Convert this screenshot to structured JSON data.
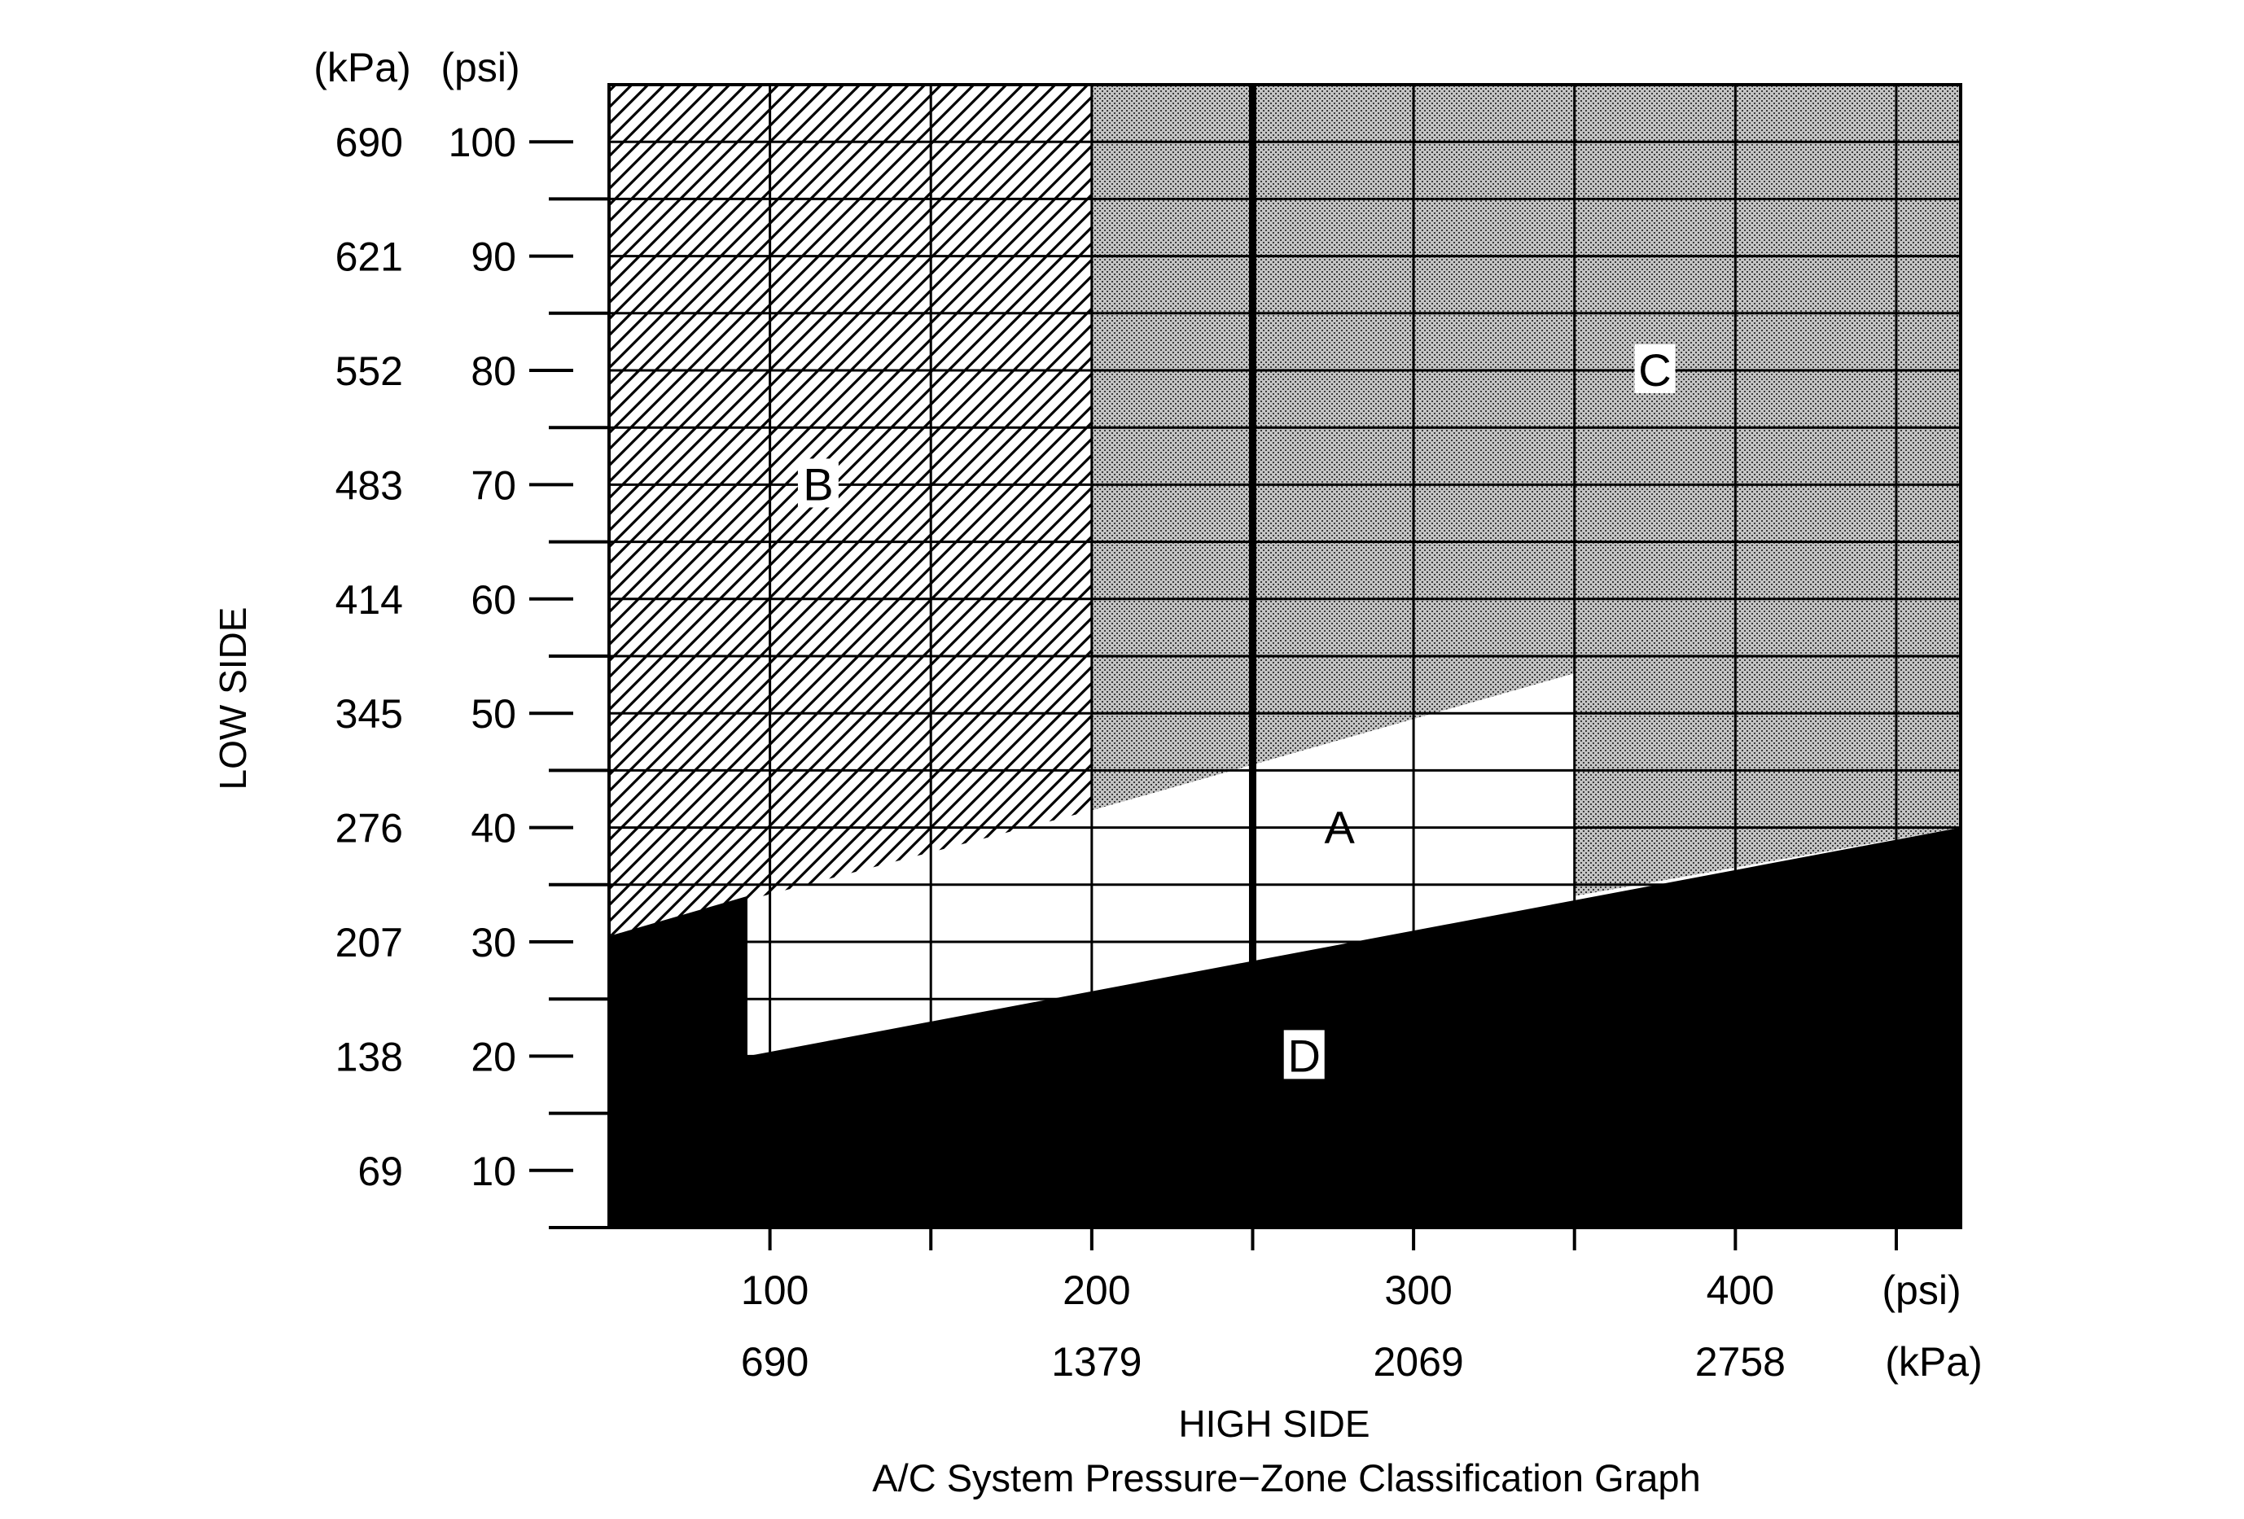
{
  "chart_data": {
    "type": "area",
    "title": "A/C System Pressure−Zone Classification Graph",
    "xlabel": "HIGH SIDE",
    "ylabel": "LOW SIDE",
    "x_units": {
      "primary": "(psi)",
      "secondary": "(kPa)"
    },
    "y_units": {
      "primary": "(psi)",
      "secondary": "(kPa)"
    },
    "xlim": [
      50,
      470
    ],
    "ylim": [
      5,
      105
    ],
    "x_ticks": [
      {
        "psi": 100,
        "psi_label": "100",
        "kpa_label": "690"
      },
      {
        "psi": 200,
        "psi_label": "200",
        "kpa_label": "1379"
      },
      {
        "psi": 300,
        "psi_label": "300",
        "kpa_label": "2069"
      },
      {
        "psi": 400,
        "psi_label": "400",
        "kpa_label": "2758"
      }
    ],
    "x_minor_ticks": [
      150,
      250,
      350,
      450
    ],
    "y_ticks": [
      {
        "psi": 100,
        "psi_label": "100",
        "kpa_label": "690"
      },
      {
        "psi": 90,
        "psi_label": "90",
        "kpa_label": "621"
      },
      {
        "psi": 80,
        "psi_label": "80",
        "kpa_label": "552"
      },
      {
        "psi": 70,
        "psi_label": "70",
        "kpa_label": "483"
      },
      {
        "psi": 60,
        "psi_label": "60",
        "kpa_label": "414"
      },
      {
        "psi": 50,
        "psi_label": "50",
        "kpa_label": "345"
      },
      {
        "psi": 40,
        "psi_label": "40",
        "kpa_label": "276"
      },
      {
        "psi": 30,
        "psi_label": "30",
        "kpa_label": "207"
      },
      {
        "psi": 20,
        "psi_label": "20",
        "kpa_label": "138"
      },
      {
        "psi": 10,
        "psi_label": "10",
        "kpa_label": "69"
      }
    ],
    "y_minor_ticks": [
      95,
      85,
      75,
      65,
      55,
      45,
      35,
      25,
      15
    ],
    "grid": true,
    "emphasized_gridline_x": 250,
    "zones": [
      {
        "label": "A",
        "pattern": "white",
        "polygon": [
          [
            93,
            20
          ],
          [
            93,
            34
          ],
          [
            250,
            45.5
          ],
          [
            350,
            53.5
          ],
          [
            350,
            34
          ],
          [
            93,
            20
          ]
        ],
        "label_at": [
          277,
          40
        ]
      },
      {
        "label": "B",
        "pattern": "diagonal-hatch",
        "polygon": [
          [
            50,
            105
          ],
          [
            200,
            105
          ],
          [
            200,
            41.5
          ],
          [
            50,
            30.5
          ]
        ],
        "label_at": [
          115,
          70
        ]
      },
      {
        "label": "C",
        "pattern": "dot-stipple",
        "polygon": [
          [
            200,
            105
          ],
          [
            470,
            105
          ],
          [
            470,
            40
          ],
          [
            350,
            34
          ],
          [
            350,
            53.5
          ],
          [
            250,
            45.5
          ],
          [
            200,
            41.5
          ]
        ],
        "label_at": [
          375,
          80
        ]
      },
      {
        "label": "D",
        "pattern": "solid-black",
        "polygon": [
          [
            50,
            5
          ],
          [
            470,
            5
          ],
          [
            470,
            40
          ],
          [
            93,
            20
          ],
          [
            93,
            34
          ],
          [
            50,
            30.5
          ]
        ],
        "label_at": [
          266,
          20
        ]
      }
    ],
    "colors": {
      "ink": "#000000",
      "paper": "#ffffff",
      "stipple": "#a8a8a8"
    }
  }
}
